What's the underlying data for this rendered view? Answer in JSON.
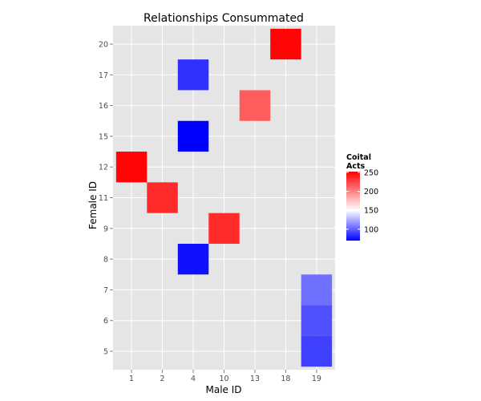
{
  "chart_data": {
    "type": "heatmap",
    "title": "Relationships Consummated",
    "xlabel": "Male ID",
    "ylabel": "Female ID",
    "x_categories": [
      "1",
      "2",
      "4",
      "10",
      "13",
      "18",
      "19"
    ],
    "y_categories": [
      "5",
      "6",
      "7",
      "8",
      "9",
      "11",
      "12",
      "15",
      "16",
      "17",
      "20"
    ],
    "cells": [
      {
        "x": "18",
        "y": "20",
        "value": 250
      },
      {
        "x": "4",
        "y": "17",
        "value": 85
      },
      {
        "x": "13",
        "y": "16",
        "value": 215
      },
      {
        "x": "4",
        "y": "15",
        "value": 70
      },
      {
        "x": "1",
        "y": "12",
        "value": 250
      },
      {
        "x": "2",
        "y": "11",
        "value": 235
      },
      {
        "x": "10",
        "y": "9",
        "value": 235
      },
      {
        "x": "4",
        "y": "8",
        "value": 75
      },
      {
        "x": "19",
        "y": "7",
        "value": 105
      },
      {
        "x": "19",
        "y": "6",
        "value": 95
      },
      {
        "x": "19",
        "y": "5",
        "value": 90
      }
    ],
    "legend": {
      "title_lines": [
        "Coital",
        "Acts"
      ],
      "min": 70,
      "max": 252,
      "midpoint": 150,
      "ticks": [
        100,
        150,
        200,
        250
      ],
      "low_color": "#0000ff",
      "mid_color": "#ffffff",
      "high_color": "#ff0000",
      "placement": "right"
    },
    "grid": true,
    "panel_background": "#e5e5e5",
    "grid_color": "#ffffff"
  }
}
